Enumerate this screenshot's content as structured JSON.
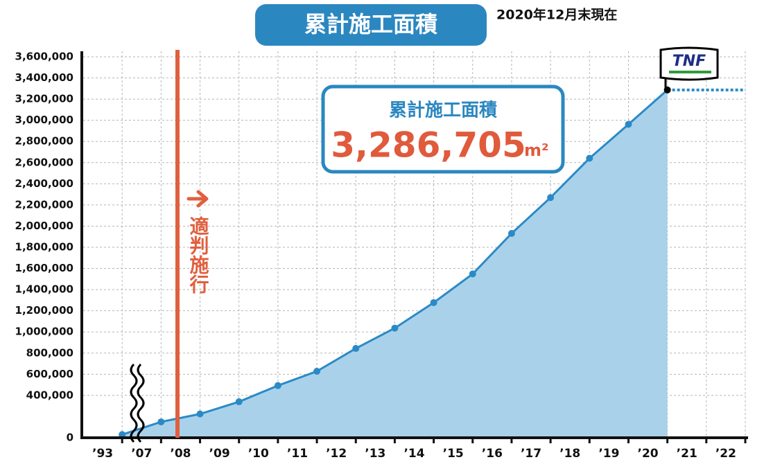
{
  "chart_data": {
    "type": "area",
    "title": "累計施工面積",
    "subtitle": "2020年12月末現在",
    "categories": [
      "’93",
      "’07",
      "’08",
      "’09",
      "’10",
      "’11",
      "’12",
      "’13",
      "’14",
      "’15",
      "’16",
      "’17",
      "’18",
      "’19",
      "’20",
      "’21",
      "’22"
    ],
    "values": [
      30000,
      150000,
      225000,
      340000,
      493000,
      628000,
      844000,
      1036000,
      1277000,
      1548000,
      1931000,
      2270000,
      2641000,
      2962000,
      3286705,
      null,
      null
    ],
    "color": "#2b8ac6",
    "fill_color": "#a9d2ea",
    "ylim": [
      0,
      3600000
    ],
    "yticks": [
      0,
      {
        "value": 400000,
        "label": "400,000"
      },
      {
        "value": 600000,
        "label": "600,000"
      },
      {
        "value": 800000,
        "label": "800,000"
      },
      {
        "value": 1000000,
        "label": "1,000,000"
      },
      {
        "value": 1200000,
        "label": "1,200,000"
      },
      {
        "value": 1400000,
        "label": "1,400,000"
      },
      {
        "value": 1600000,
        "label": "1,600,000"
      },
      {
        "value": 1800000,
        "label": "1,800,000"
      },
      {
        "value": 2000000,
        "label": "2,000,000"
      },
      {
        "value": 2200000,
        "label": "2,200,000"
      },
      {
        "value": 2400000,
        "label": "2,400,000"
      },
      {
        "value": 2600000,
        "label": "2,600,000"
      },
      {
        "value": 2800000,
        "label": "2,800,000"
      },
      {
        "value": 3000000,
        "label": "3,000,000"
      },
      {
        "value": 3200000,
        "label": "3,200,000"
      },
      {
        "value": 3400000,
        "label": "3,400,000"
      },
      {
        "value": 3600000,
        "label": "3,600,000"
      }
    ],
    "grid": true,
    "event_label": "適判施行",
    "box_title": "累計施工面積",
    "box_value": "3,286,705",
    "box_unit": "m²",
    "logo": "TNF"
  }
}
